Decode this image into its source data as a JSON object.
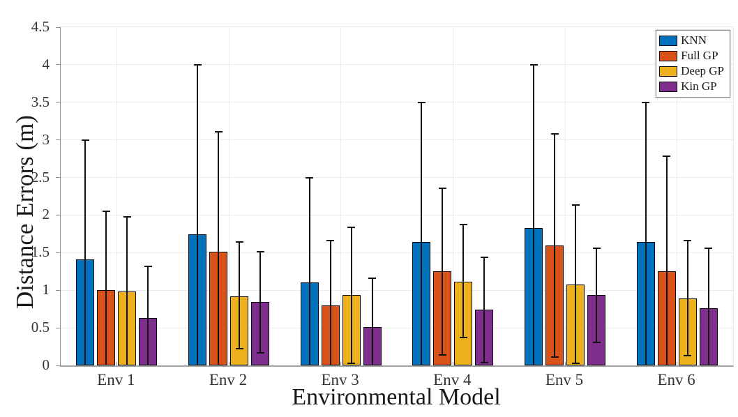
{
  "figure": {
    "background": "#ffffff"
  },
  "chart_data": {
    "type": "bar",
    "title": "",
    "xlabel": "Environmental Model",
    "ylabel": "Distance Errors (m)",
    "categories": [
      "Env 1",
      "Env 2",
      "Env 3",
      "Env 4",
      "Env 5",
      "Env 6"
    ],
    "ylim": [
      0,
      4.5
    ],
    "ytick_labels": [
      "0",
      "0.5",
      "1",
      "1.5",
      "2",
      "2.5",
      "3",
      "3.5",
      "4",
      "4.5"
    ],
    "grid": true,
    "legend_position": "top-right-inside",
    "bar_outline_color": "#0a0a0a",
    "errorbar_color": "#111111",
    "grid_color": "#ebebeb",
    "axis_color": "#8f8f8f",
    "series": [
      {
        "name": "KNN",
        "color": "#0072BD",
        "values": [
          1.41,
          1.74,
          1.1,
          1.64,
          1.83,
          1.64
        ],
        "whisker_top": [
          3.0,
          4.0,
          2.5,
          3.5,
          4.0,
          3.5
        ],
        "whisker_bottom": [
          0,
          0,
          0,
          0,
          0,
          0
        ]
      },
      {
        "name": "Full GP",
        "color": "#D95319",
        "values": [
          1.0,
          1.51,
          0.8,
          1.25,
          1.6,
          1.25
        ],
        "whisker_top": [
          2.05,
          3.11,
          1.66,
          2.36,
          3.08,
          2.78
        ],
        "whisker_bottom": [
          0,
          0,
          0,
          0.14,
          0.11,
          0
        ]
      },
      {
        "name": "Deep GP",
        "color": "#EDB120",
        "values": [
          0.98,
          0.92,
          0.94,
          1.11,
          1.08,
          0.89
        ],
        "whisker_top": [
          1.98,
          1.64,
          1.84,
          1.87,
          2.13,
          1.66
        ],
        "whisker_bottom": [
          0,
          0.22,
          0.03,
          0.37,
          0.03,
          0.13
        ]
      },
      {
        "name": "Kin GP",
        "color": "#7E2F8E",
        "values": [
          0.63,
          0.84,
          0.51,
          0.74,
          0.94,
          0.76
        ],
        "whisker_top": [
          1.32,
          1.51,
          1.16,
          1.44,
          1.56,
          1.56
        ],
        "whisker_bottom": [
          0,
          0.17,
          0,
          0.04,
          0.31,
          0
        ]
      }
    ]
  }
}
